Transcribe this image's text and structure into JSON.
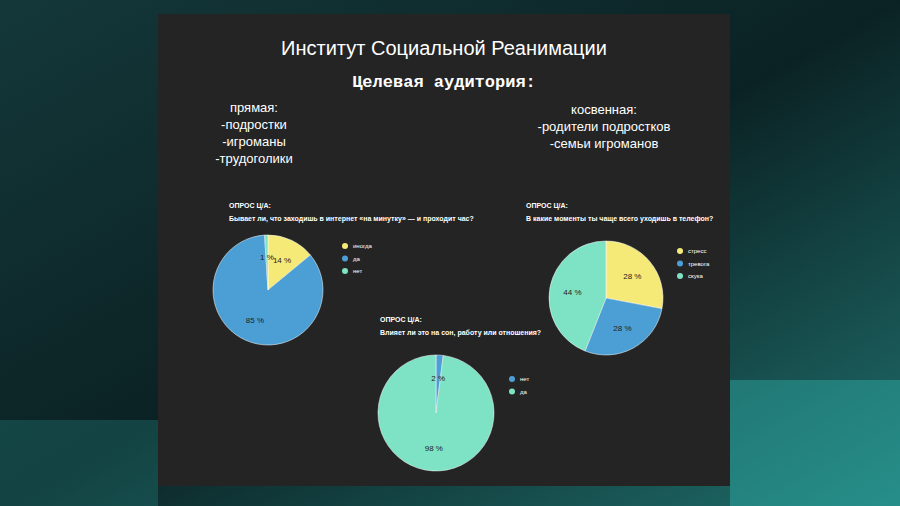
{
  "header": {
    "title": "Институт Социальной Реанимации",
    "subtitle": "Целевая аудитория:"
  },
  "audience": {
    "direct": {
      "title": "прямая:",
      "items": [
        "-подростки",
        "-игроманы",
        "-трудоголики"
      ]
    },
    "indirect": {
      "title": "косвенная:",
      "items": [
        "-родители подростков",
        "-семьи игроманов"
      ]
    }
  },
  "chart_data": [
    {
      "type": "pie",
      "title": "ОПРОС Ц/А:",
      "subtitle": "Бывает ли, что заходишь в интернет «на минутку» — и проходит час?",
      "categories": [
        "иногда",
        "да",
        "нет"
      ],
      "values": [
        14,
        85,
        1
      ],
      "value_labels": [
        "14 %",
        "85 %",
        "1 %"
      ],
      "colors": [
        "#f5ea78",
        "#4b9fd5",
        "#7ee3c4"
      ],
      "data_labels": true,
      "legend": "right"
    },
    {
      "type": "pie",
      "title": "ОПРОС Ц/А:",
      "subtitle": "В какие моменты ты чаще всего уходишь в телефон?",
      "categories": [
        "стресс",
        "тревога",
        "скука"
      ],
      "values": [
        28,
        28,
        44
      ],
      "value_labels": [
        "28 %",
        "28 %",
        "44 %"
      ],
      "colors": [
        "#f5ea78",
        "#4b9fd5",
        "#7ee3c4"
      ],
      "data_labels": true,
      "legend": "right"
    },
    {
      "type": "pie",
      "title": "ОПРОС Ц/А:",
      "subtitle": "Влияет ли это на сон, работу или отношения?",
      "categories": [
        "нет",
        "да"
      ],
      "values": [
        2,
        98
      ],
      "value_labels": [
        "2 %",
        "98 %"
      ],
      "colors": [
        "#4b9fd5",
        "#7ee3c4"
      ],
      "data_labels": true,
      "legend": "right"
    }
  ]
}
